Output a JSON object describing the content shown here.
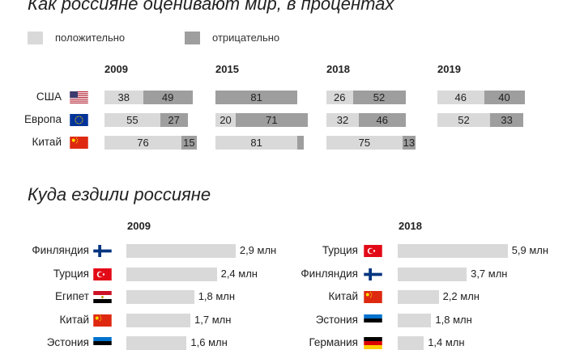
{
  "colors": {
    "positive": "#d9d9d9",
    "negative": "#9e9e9e",
    "trip_bar": "#d9d9d9"
  },
  "chart_data": [
    {
      "type": "bar",
      "title": "Как россияне оценивают мир, в процентах",
      "legend": [
        {
          "key": "positive",
          "label": "положительно"
        },
        {
          "key": "negative",
          "label": "отрицательно"
        }
      ],
      "legend_position": "top-left",
      "years": [
        "2009",
        "2015",
        "2018",
        "2019"
      ],
      "rows": [
        {
          "label": "США",
          "flag": "usa-flag-icon",
          "values": [
            {
              "pos": 38,
              "neg": 49
            },
            {
              "pos": null,
              "neg": 81
            },
            {
              "pos": 26,
              "neg": 52
            },
            {
              "pos": 46,
              "neg": 40
            }
          ]
        },
        {
          "label": "Европа",
          "flag": "eu-flag-icon",
          "values": [
            {
              "pos": 55,
              "neg": 27
            },
            {
              "pos": 20,
              "neg": 71
            },
            {
              "pos": 32,
              "neg": 46
            },
            {
              "pos": 52,
              "neg": 33
            }
          ]
        },
        {
          "label": "Китай",
          "flag": "china-flag-icon",
          "values": [
            {
              "pos": 76,
              "neg": 15
            },
            {
              "pos": 81,
              "neg": 6,
              "neg_label": ""
            },
            {
              "pos": 75,
              "neg": 13
            },
            null
          ]
        }
      ]
    },
    {
      "type": "bar",
      "title": "Куда ездили россияне",
      "groups": [
        {
          "year": "2009",
          "items": [
            {
              "label": "Финляндия",
              "flag": "finland-flag-icon",
              "value": 2.9,
              "value_label": "2,9 млн"
            },
            {
              "label": "Турция",
              "flag": "turkey-flag-icon",
              "value": 2.4,
              "value_label": "2,4 млн"
            },
            {
              "label": "Египет",
              "flag": "egypt-flag-icon",
              "value": 1.8,
              "value_label": "1,8 млн"
            },
            {
              "label": "Китай",
              "flag": "china-flag-icon",
              "value": 1.7,
              "value_label": "1,7 млн"
            },
            {
              "label": "Эстония",
              "flag": "estonia-flag-icon",
              "value": 1.6,
              "value_label": "1,6 млн"
            }
          ]
        },
        {
          "year": "2018",
          "items": [
            {
              "label": "Турция",
              "flag": "turkey-flag-icon",
              "value": 5.9,
              "value_label": "5,9 млн"
            },
            {
              "label": "Финляндия",
              "flag": "finland-flag-icon",
              "value": 3.7,
              "value_label": "3,7 млн"
            },
            {
              "label": "Китай",
              "flag": "china-flag-icon",
              "value": 2.2,
              "value_label": "2,2 млн"
            },
            {
              "label": "Эстония",
              "flag": "estonia-flag-icon",
              "value": 1.8,
              "value_label": "1,8 млн"
            },
            {
              "label": "Германия",
              "flag": "germany-flag-icon",
              "value": 1.4,
              "value_label": "1,4 млн"
            }
          ]
        }
      ]
    }
  ]
}
